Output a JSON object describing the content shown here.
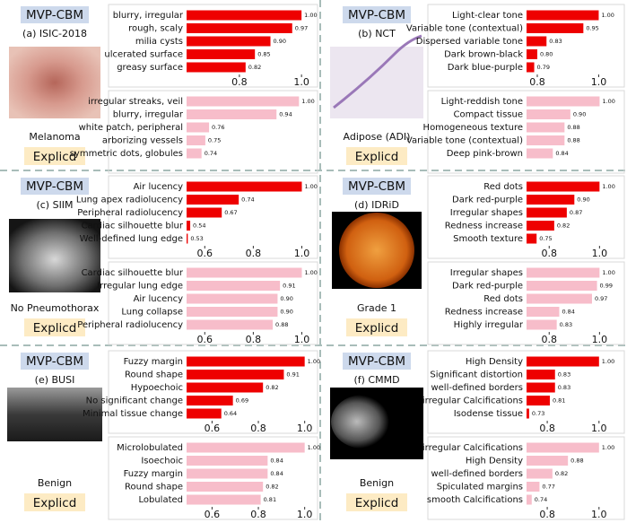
{
  "panels": [
    {
      "method": "MVP-CBM",
      "dataset": "(a) ISIC-2018",
      "label": "Melanoma",
      "baseline": "Explicd"
    },
    {
      "method": "MVP-CBM",
      "dataset": "(b) NCT",
      "label": "Adipose (ADI)",
      "baseline": "Explicd"
    },
    {
      "method": "MVP-CBM",
      "dataset": "(c) SIIM",
      "label": "No Pneumothorax",
      "baseline": "Explicd"
    },
    {
      "method": "MVP-CBM",
      "dataset": "(d) IDRiD",
      "label": "Grade 1",
      "baseline": "Explicd"
    },
    {
      "method": "MVP-CBM",
      "dataset": "(e) BUSI",
      "label": "Benign",
      "baseline": "Explicd"
    },
    {
      "method": "MVP-CBM",
      "dataset": "(f) CMMD",
      "label": "Benign",
      "baseline": "Explicd"
    }
  ],
  "chart_data": [
    {
      "type": "barh",
      "color": "#ee0000",
      "categories": [
        "blurry, irregular",
        "rough, scaly",
        "milia cysts",
        "ulcerated surface",
        "greasy surface"
      ],
      "values": [
        1,
        0.97,
        0.9,
        0.85,
        0.82
      ],
      "value_labels": [
        "1.00",
        "0.97",
        "0.90",
        "0.85",
        "0.82"
      ],
      "xlim": [
        0.63,
        1.04
      ],
      "xticks": [
        0.8,
        {
          "value": 1,
          "label": "1.0"
        }
      ]
    },
    {
      "type": "barh",
      "color": "#f7bdca",
      "categories": [
        "irregular streaks, veil",
        "blurry, irregular",
        "white patch, peripheral",
        "arborizing vessels",
        "symmetric dots, globules"
      ],
      "values": [
        1,
        0.94,
        0.76,
        0.75,
        0.74
      ],
      "value_labels": [
        "1.00",
        "0.94",
        "0.76",
        "0.75",
        "0.74"
      ],
      "xlim": [
        0.7,
        1.04
      ]
    },
    {
      "type": "barh",
      "color": "#ee0000",
      "categories": [
        "Light-clear tone",
        "Variable tone (contextual)",
        "Dispersed variable tone",
        "Dark brown-black",
        "Dark blue-purple"
      ],
      "values": [
        1,
        0.95,
        0.83,
        0.8,
        0.79
      ],
      "value_labels": [
        "1.00",
        "0.95",
        "0.83",
        "0.80",
        "0.79"
      ],
      "xlim": [
        0.765,
        1.06
      ],
      "xticks": [
        0.8,
        {
          "value": 1,
          "label": "1.0"
        }
      ]
    },
    {
      "type": "barh",
      "color": "#f7bdca",
      "categories": [
        "Light-reddish tone",
        "Compact tissue",
        "Homogeneous texture",
        "Variable tone (contextual)",
        "Deep pink-brown"
      ],
      "values": [
        1,
        0.9,
        0.88,
        0.88,
        0.84
      ],
      "value_labels": [
        "1.00",
        "0.90",
        "0.88",
        "0.88",
        "0.84"
      ],
      "xlim": [
        0.75,
        1.06
      ]
    },
    {
      "type": "barh",
      "color": "#ee0000",
      "categories": [
        "Air lucency",
        "Lung apex radiolucency",
        "Peripheral radiolucency",
        "Cardiac silhouette blur",
        "Well-defined lung edge"
      ],
      "values": [
        1,
        0.74,
        0.67,
        0.54,
        0.53
      ],
      "value_labels": [
        "1.00",
        "0.74",
        "0.67",
        "0.54",
        "0.53"
      ],
      "xlim": [
        0.525,
        1.05
      ],
      "xticks": [
        0.6,
        0.8,
        {
          "value": 1,
          "label": "1.0"
        }
      ]
    },
    {
      "type": "barh",
      "color": "#f7bdca",
      "categories": [
        "Cardiac silhouette blur",
        "Irregular lung edge",
        "Air lucency",
        "Lung collapse",
        "Peripheral radiolucency"
      ],
      "values": [
        1,
        0.91,
        0.9,
        0.9,
        0.88
      ],
      "value_labels": [
        "1.00",
        "0.91",
        "0.90",
        "0.90",
        "0.88"
      ],
      "xlim": [
        0.525,
        1.05
      ],
      "xticks": [
        0.6,
        0.8,
        {
          "value": 1,
          "label": "1.0"
        }
      ]
    },
    {
      "type": "barh",
      "color": "#ee0000",
      "categories": [
        "Red dots",
        "Dark red-purple",
        "Irregular shapes",
        "Redness increase",
        "Smooth texture"
      ],
      "values": [
        1,
        0.9,
        0.87,
        0.82,
        0.75
      ],
      "value_labels": [
        "1.00",
        "0.90",
        "0.87",
        "0.82",
        "0.75"
      ],
      "xlim": [
        0.71,
        1.07
      ],
      "xticks": [
        0.8,
        {
          "value": 1,
          "label": "1.0"
        }
      ]
    },
    {
      "type": "barh",
      "color": "#f7bdca",
      "categories": [
        "Irregular shapes",
        "Dark red-purple",
        "Red dots",
        "Redness increase",
        "Highly irregular"
      ],
      "values": [
        1,
        0.99,
        0.97,
        0.84,
        0.83
      ],
      "value_labels": [
        "1.00",
        "0.99",
        "0.97",
        "0.84",
        "0.83"
      ],
      "xlim": [
        0.71,
        1.07
      ],
      "xticks": [
        0.8,
        {
          "value": 1,
          "label": "1.0"
        }
      ]
    },
    {
      "type": "barh",
      "color": "#ee0000",
      "categories": [
        "Fuzzy margin",
        "Round shape",
        "Hypoechoic",
        "No significant change",
        "Minimal tissue change"
      ],
      "values": [
        1,
        0.91,
        0.82,
        0.69,
        0.64
      ],
      "value_labels": [
        "1.00",
        "0.91",
        "0.82",
        "0.69",
        "0.64"
      ],
      "xlim": [
        0.49,
        1.04
      ],
      "xticks": [
        0.6,
        0.8,
        {
          "value": 1,
          "label": "1.0"
        }
      ]
    },
    {
      "type": "barh",
      "color": "#f7bdca",
      "categories": [
        "Microlobulated",
        "Isoechoic",
        "Fuzzy margin",
        "Round shape",
        "Lobulated"
      ],
      "values": [
        1,
        0.84,
        0.84,
        0.82,
        0.81
      ],
      "value_labels": [
        "1.00",
        "0.84",
        "0.84",
        "0.82",
        "0.81"
      ],
      "xlim": [
        0.49,
        1.04
      ],
      "xticks": [
        0.6,
        0.8,
        {
          "value": 1,
          "label": "1.0"
        }
      ]
    },
    {
      "type": "barh",
      "color": "#ee0000",
      "categories": [
        "High Density",
        "Significant distortion",
        "well-defined borders",
        "irregular Calcifications",
        "Isodense tissue"
      ],
      "values": [
        1,
        0.83,
        0.83,
        0.81,
        0.73
      ],
      "value_labels": [
        "1.00",
        "0.83",
        "0.83",
        "0.81",
        "0.73"
      ],
      "xlim": [
        0.72,
        1.07
      ],
      "xticks": [
        0.8,
        {
          "value": 1,
          "label": "1.0"
        }
      ]
    },
    {
      "type": "barh",
      "color": "#f7bdca",
      "categories": [
        "irregular Calcifications",
        "High Density",
        "well-defined borders",
        "Spiculated margins",
        "smooth Calcifications"
      ],
      "values": [
        1,
        0.88,
        0.82,
        0.77,
        0.74
      ],
      "value_labels": [
        "1.00",
        "0.88",
        "0.82",
        "0.77",
        "0.74"
      ],
      "xlim": [
        0.72,
        1.07
      ],
      "xticks": [
        0.8,
        {
          "value": 1,
          "label": "1.0"
        }
      ]
    }
  ]
}
